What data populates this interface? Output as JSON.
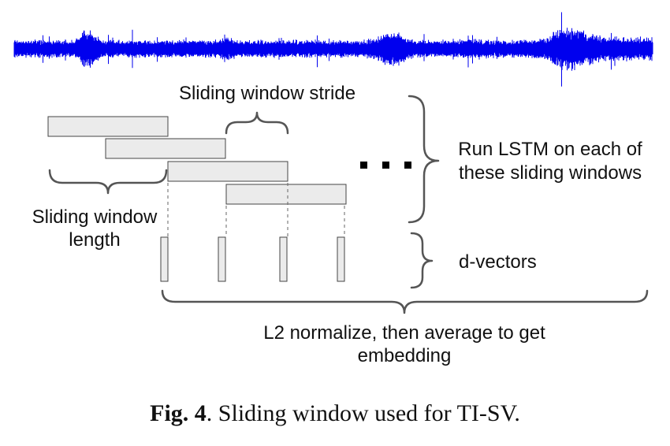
{
  "diagram": {
    "labels": {
      "stride": "Sliding window stride",
      "length_line1": "Sliding window",
      "length_line2": "length",
      "lstm_line1": "Run LSTM on each of",
      "lstm_line2": "these sliding windows",
      "dvectors": "d-vectors",
      "normalize_line1": "L2 normalize, then average to get",
      "normalize_line2": "embedding"
    },
    "colors": {
      "waveform": "#0000ee",
      "window_fill": "#ebebeb",
      "window_stroke": "#444444",
      "brace": "#555555"
    },
    "window_count": 4,
    "dvector_count": 4,
    "ellipsis_dots": 3
  },
  "caption": {
    "label": "Fig. 4",
    "text": ". Sliding window used for TI-SV."
  }
}
